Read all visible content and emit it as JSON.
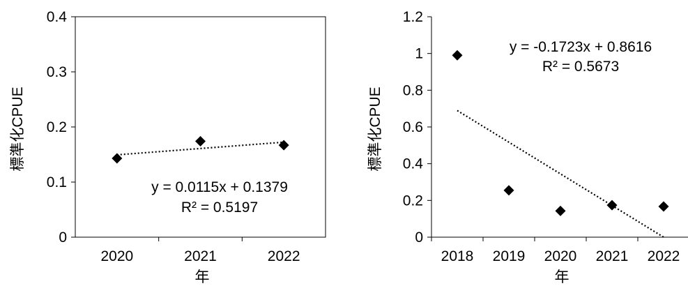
{
  "chart_data": [
    {
      "type": "scatter",
      "xlabel": "年",
      "ylabel": "標準化CPUE",
      "x_ticks": [
        "2020",
        "2021",
        "2022"
      ],
      "y_ticks": [
        "0",
        "0.1",
        "0.2",
        "0.3",
        "0.4"
      ],
      "ylim": [
        0,
        0.4
      ],
      "marker": "diamond",
      "grid": false,
      "series": [
        {
          "x": [
            "2020",
            "2021",
            "2022"
          ],
          "y": [
            0.143,
            0.174,
            0.167
          ]
        }
      ],
      "trendline": {
        "slope": 0.0115,
        "intercept": 0.1379,
        "style": "dotted"
      },
      "equation": "y = 0.0115x + 0.1379",
      "r_squared": "R² = 0.5197"
    },
    {
      "type": "scatter",
      "xlabel": "年",
      "ylabel": "標準化CPUE",
      "x_ticks": [
        "2018",
        "2019",
        "2020",
        "2021",
        "2022"
      ],
      "y_ticks": [
        "0",
        "0.2",
        "0.4",
        "0.6",
        "0.8",
        "1",
        "1.2"
      ],
      "ylim": [
        0,
        1.2
      ],
      "marker": "diamond",
      "grid": false,
      "series": [
        {
          "x": [
            "2018",
            "2019",
            "2020",
            "2021",
            "2022"
          ],
          "y": [
            0.99,
            0.255,
            0.143,
            0.174,
            0.167
          ]
        }
      ],
      "trendline": {
        "slope": -0.1723,
        "intercept": 0.8616,
        "style": "dotted"
      },
      "equation": "y = -0.1723x + 0.8616",
      "r_squared": "R² = 0.5673"
    }
  ]
}
